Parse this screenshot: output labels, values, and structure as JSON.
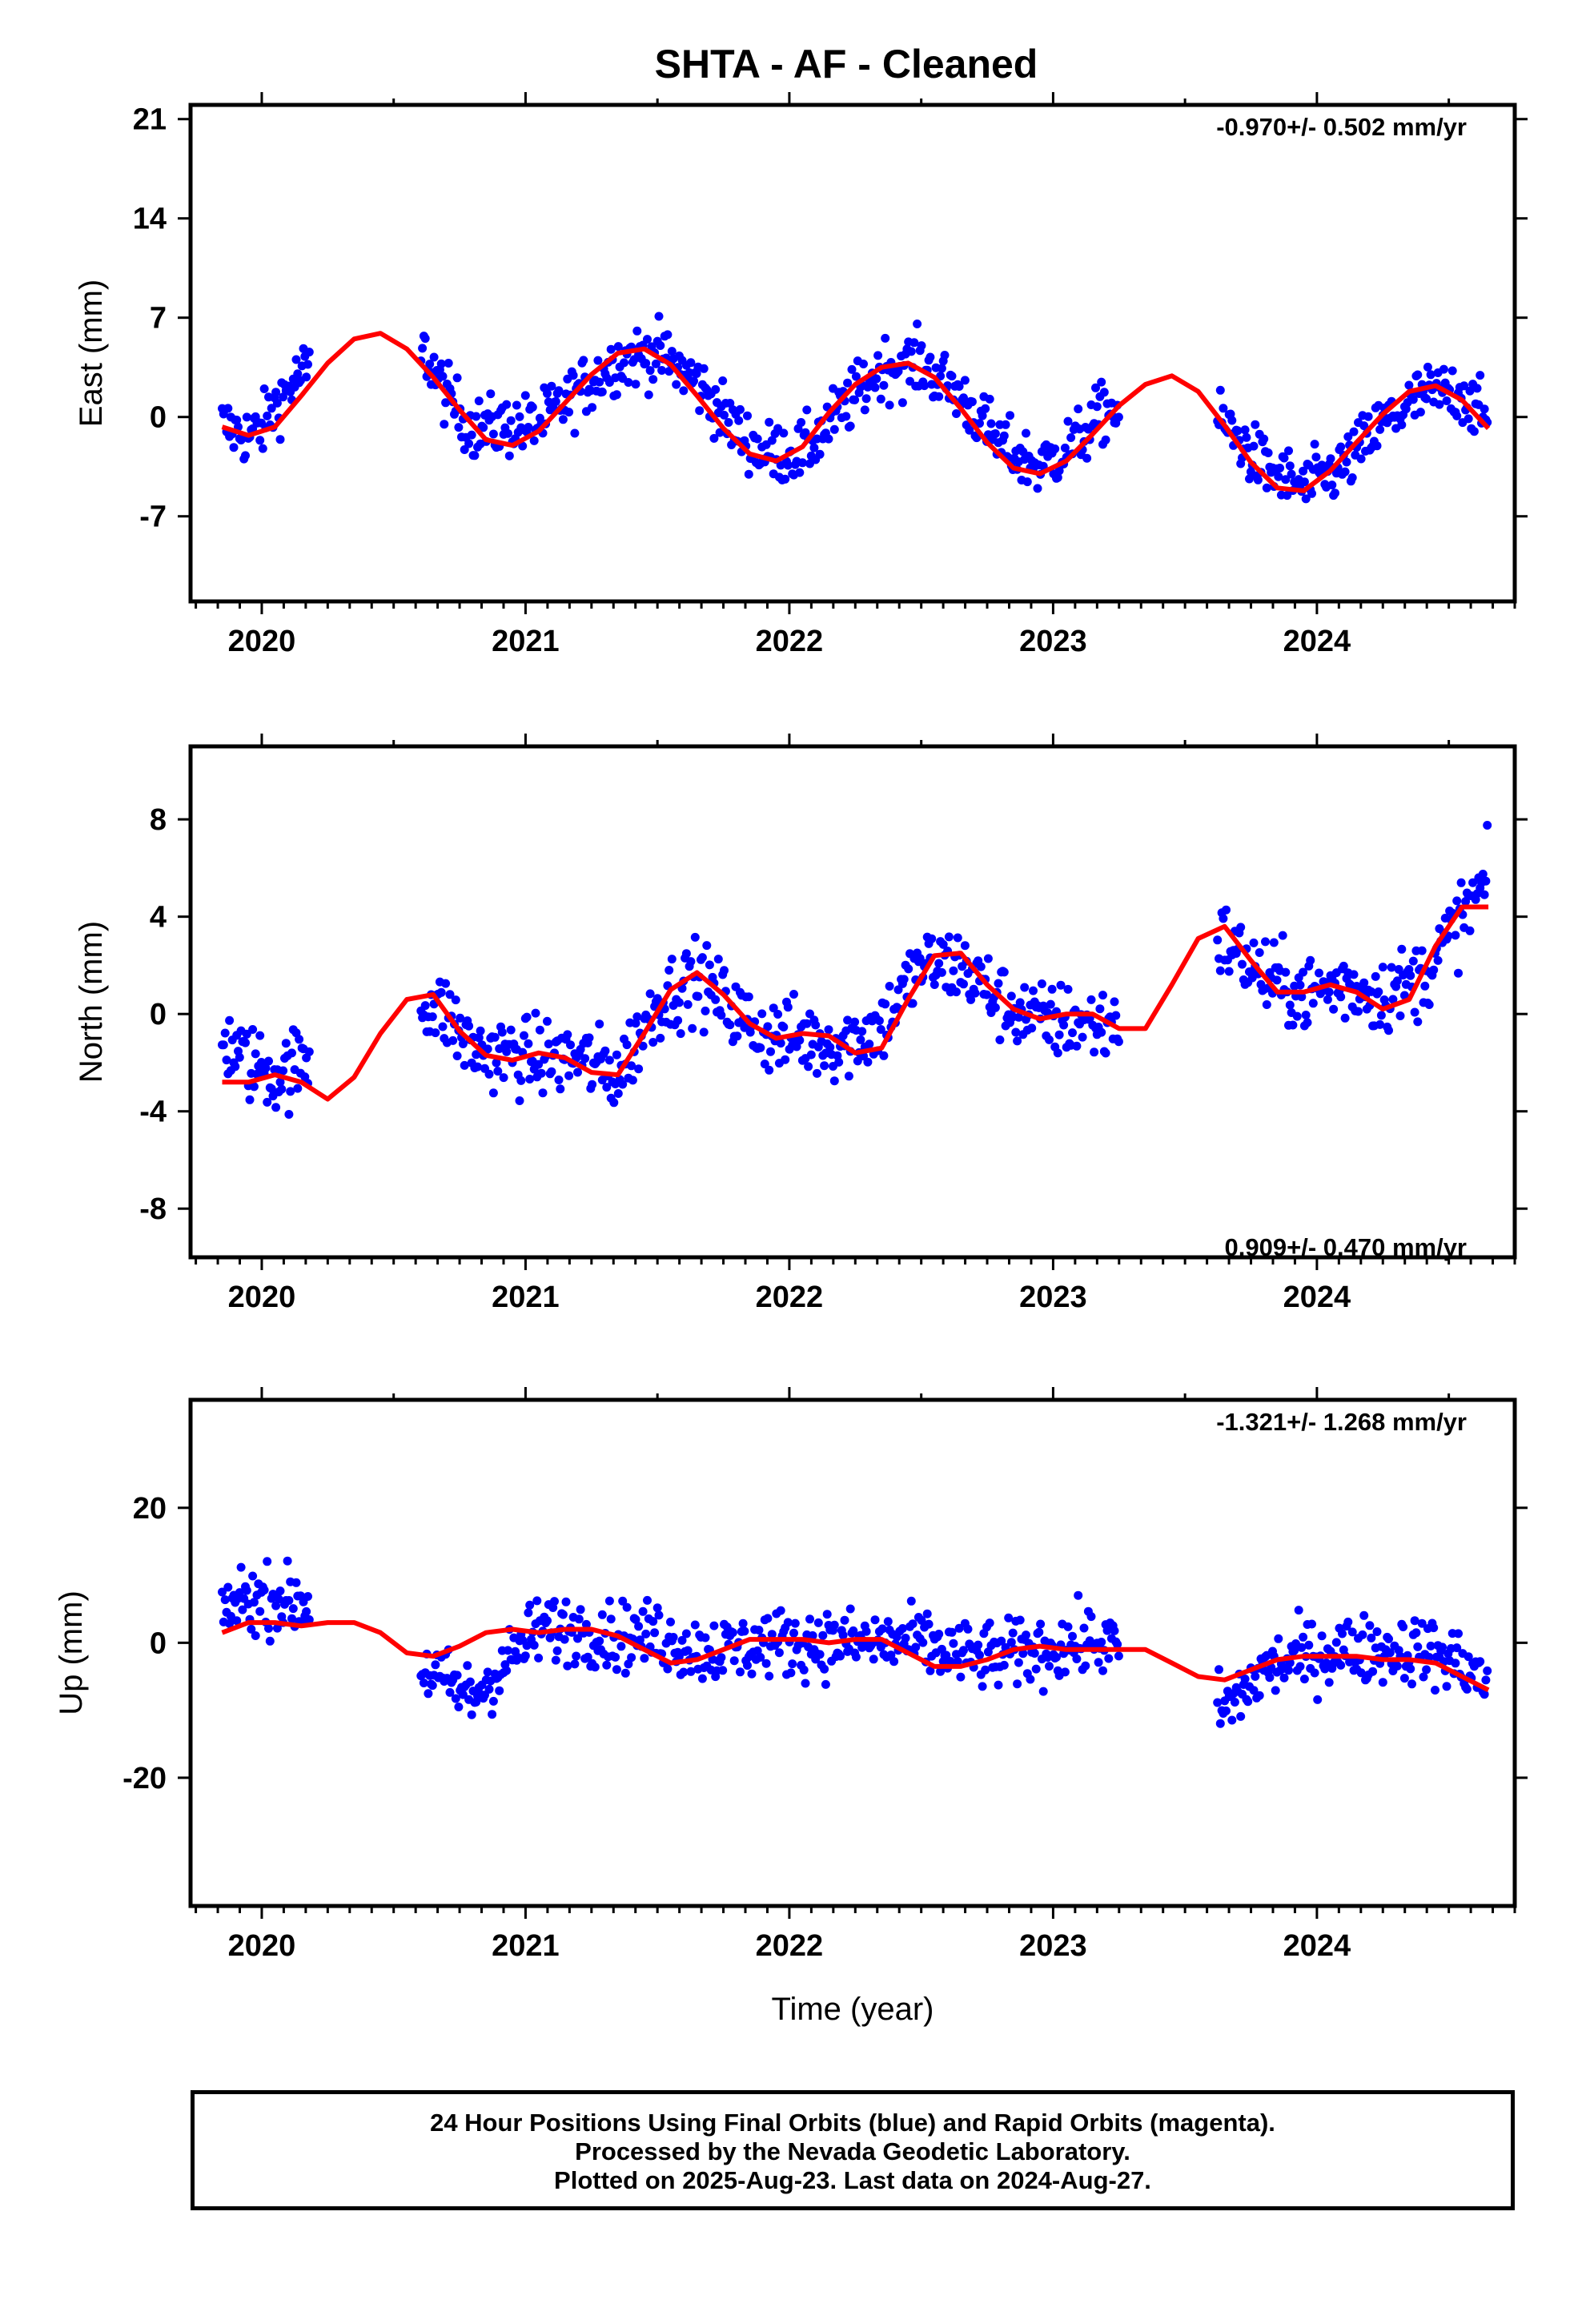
{
  "title": "SHTA  - AF - Cleaned",
  "footer": {
    "line1": "24 Hour Positions Using Final Orbits (blue) and Rapid Orbits (magenta).",
    "line2": "Processed by the Nevada Geodetic Laboratory.",
    "line3": "Plotted on 2025-Aug-23. Last data on 2024-Aug-27."
  },
  "chart_data": [
    {
      "type": "scatter",
      "ylabel": "East (mm)",
      "xlabel": "",
      "xlim": [
        2019.73,
        2024.75
      ],
      "ylim": [
        -13,
        22
      ],
      "xticks": [
        2020,
        2021,
        2022,
        2023,
        2024
      ],
      "yticks": [
        21,
        14,
        7,
        0,
        -7
      ],
      "rate_text": "-0.970+/- 0.502 mm/yr",
      "rate_position": "top-right",
      "gaps": [
        [
          2020.18,
          2020.6
        ],
        [
          2023.25,
          2023.62
        ]
      ],
      "series": [
        {
          "kind": "points",
          "color": "#0000ff",
          "x": [
            2019.85,
            2019.9,
            2019.95,
            2020.0,
            2020.05,
            2020.1,
            2020.15,
            2020.62,
            2020.7,
            2020.8,
            2021.05,
            2021.2,
            2021.35,
            2021.5,
            2021.65,
            2021.8,
            2021.9,
            2022.05,
            2022.2,
            2022.35,
            2022.5,
            2022.65,
            2022.8,
            2022.95,
            2023.1,
            2023.2,
            2023.65,
            2023.8,
            2023.95,
            2024.1,
            2024.25,
            2024.4,
            2024.55,
            2024.65
          ],
          "y": [
            -0.5,
            -1.0,
            -1.3,
            -0.8,
            0.8,
            2.0,
            3.0,
            4.5,
            1.5,
            -0.8,
            -0.5,
            1.8,
            4.0,
            4.5,
            2.5,
            -1.0,
            -2.5,
            -2.5,
            0.5,
            3.5,
            3.8,
            1.5,
            -2.0,
            -3.5,
            -1.5,
            0.5,
            -0.5,
            -3.5,
            -5.0,
            -3.5,
            -0.5,
            1.5,
            1.8,
            -0.5
          ],
          "spread": 2.6
        },
        {
          "kind": "fit",
          "color": "#ff0000",
          "x": [
            2019.85,
            2019.95,
            2020.05,
            2020.15,
            2020.25,
            2020.35,
            2020.45,
            2020.55,
            2020.65,
            2020.75,
            2020.85,
            2020.95,
            2021.05,
            2021.15,
            2021.25,
            2021.35,
            2021.45,
            2021.55,
            2021.65,
            2021.75,
            2021.85,
            2021.95,
            2022.05,
            2022.15,
            2022.25,
            2022.35,
            2022.45,
            2022.55,
            2022.65,
            2022.75,
            2022.85,
            2022.95,
            2023.05,
            2023.15,
            2023.25,
            2023.35,
            2023.45,
            2023.55,
            2023.65,
            2023.75,
            2023.85,
            2023.95,
            2024.05,
            2024.15,
            2024.25,
            2024.35,
            2024.45,
            2024.55,
            2024.65
          ],
          "y": [
            -0.7,
            -1.3,
            -0.7,
            1.5,
            3.8,
            5.5,
            5.9,
            4.8,
            2.8,
            0.5,
            -1.6,
            -2.0,
            -1.0,
            1.0,
            3.0,
            4.5,
            4.8,
            3.7,
            1.5,
            -0.8,
            -2.6,
            -3.1,
            -2.1,
            0.3,
            2.3,
            3.5,
            3.8,
            2.8,
            0.6,
            -1.8,
            -3.6,
            -4.0,
            -3.1,
            -1.2,
            0.8,
            2.3,
            2.9,
            1.8,
            -0.6,
            -3.2,
            -5.0,
            -5.2,
            -3.8,
            -1.8,
            0.2,
            1.8,
            2.2,
            1.2,
            -0.8
          ]
        }
      ]
    },
    {
      "type": "scatter",
      "ylabel": "North (mm)",
      "xlabel": "",
      "xlim": [
        2019.73,
        2024.75
      ],
      "ylim": [
        -10,
        11
      ],
      "xticks": [
        2020,
        2021,
        2022,
        2023,
        2024
      ],
      "yticks": [
        8,
        4,
        0,
        -4,
        -8
      ],
      "rate_text": "0.909+/- 0.470 mm/yr",
      "rate_position": "bottom-right",
      "gaps": [
        [
          2020.18,
          2020.6
        ],
        [
          2023.25,
          2023.62
        ]
      ],
      "series": [
        {
          "kind": "points",
          "color": "#0000ff",
          "x": [
            2019.85,
            2019.9,
            2019.95,
            2020.0,
            2020.05,
            2020.1,
            2020.15,
            2020.62,
            2020.7,
            2020.8,
            2021.05,
            2021.2,
            2021.35,
            2021.5,
            2021.65,
            2021.8,
            2021.9,
            2022.05,
            2022.2,
            2022.35,
            2022.5,
            2022.65,
            2022.8,
            2022.95,
            2023.1,
            2023.2,
            2023.65,
            2023.8,
            2023.95,
            2024.1,
            2024.25,
            2024.4,
            2024.55,
            2024.65
          ],
          "y": [
            -1.0,
            -1.5,
            -2.0,
            -2.2,
            -2.5,
            -2.3,
            -2.0,
            0.5,
            0.0,
            -1.5,
            -1.8,
            -1.8,
            -2.5,
            0.5,
            1.5,
            0.0,
            -0.8,
            -1.0,
            -1.2,
            -0.5,
            2.0,
            2.0,
            0.5,
            -0.3,
            -0.3,
            -0.5,
            3.0,
            1.5,
            0.8,
            1.2,
            0.8,
            1.5,
            4.0,
            5.5
          ],
          "spread": 1.9
        },
        {
          "kind": "fit",
          "color": "#ff0000",
          "x": [
            2019.85,
            2019.95,
            2020.05,
            2020.15,
            2020.25,
            2020.35,
            2020.45,
            2020.55,
            2020.65,
            2020.75,
            2020.85,
            2020.95,
            2021.05,
            2021.15,
            2021.25,
            2021.35,
            2021.45,
            2021.55,
            2021.65,
            2021.75,
            2021.85,
            2021.95,
            2022.05,
            2022.15,
            2022.25,
            2022.35,
            2022.45,
            2022.55,
            2022.65,
            2022.75,
            2022.85,
            2022.95,
            2023.05,
            2023.15,
            2023.25,
            2023.35,
            2023.45,
            2023.55,
            2023.65,
            2023.75,
            2023.85,
            2023.95,
            2024.05,
            2024.15,
            2024.25,
            2024.35,
            2024.45,
            2024.55,
            2024.65
          ],
          "y": [
            -2.8,
            -2.8,
            -2.5,
            -2.8,
            -3.5,
            -2.6,
            -0.8,
            0.6,
            0.8,
            -0.7,
            -1.7,
            -1.9,
            -1.6,
            -1.8,
            -2.4,
            -2.5,
            -0.8,
            1.0,
            1.7,
            0.8,
            -0.4,
            -1.0,
            -0.8,
            -0.9,
            -1.6,
            -1.4,
            0.6,
            2.4,
            2.5,
            1.2,
            0.2,
            -0.2,
            0.0,
            0.0,
            -0.6,
            -0.6,
            1.2,
            3.1,
            3.6,
            2.2,
            0.9,
            0.9,
            1.2,
            0.9,
            0.2,
            0.6,
            2.8,
            4.4,
            4.4
          ]
        }
      ]
    },
    {
      "type": "scatter",
      "ylabel": "Up (mm)",
      "xlabel": "Time (year)",
      "xlim": [
        2019.73,
        2024.75
      ],
      "ylim": [
        -39,
        36
      ],
      "xticks": [
        2020,
        2021,
        2022,
        2023,
        2024
      ],
      "yticks": [
        20,
        0,
        -20
      ],
      "rate_text": "-1.321+/- 1.268 mm/yr",
      "rate_position": "top-right",
      "gaps": [
        [
          2020.18,
          2020.6
        ],
        [
          2023.25,
          2023.62
        ]
      ],
      "series": [
        {
          "kind": "points",
          "color": "#0000ff",
          "x": [
            2019.85,
            2019.9,
            2019.95,
            2020.0,
            2020.05,
            2020.1,
            2020.15,
            2020.62,
            2020.7,
            2020.8,
            2021.05,
            2021.2,
            2021.35,
            2021.5,
            2021.65,
            2021.8,
            2021.9,
            2022.05,
            2022.2,
            2022.35,
            2022.5,
            2022.65,
            2022.8,
            2022.95,
            2023.1,
            2023.2,
            2023.65,
            2023.8,
            2023.95,
            2024.1,
            2024.25,
            2024.4,
            2024.55,
            2024.65
          ],
          "y": [
            5,
            6,
            7,
            6,
            7,
            6,
            6,
            -4,
            -6,
            -8,
            2,
            2,
            1,
            1,
            -1,
            -1,
            0,
            0,
            0,
            0,
            0,
            -2,
            -2,
            -1,
            0,
            0,
            -10,
            -4,
            -2,
            -1,
            -1,
            -1,
            -3,
            -6
          ],
          "spread": 6.0
        },
        {
          "kind": "fit",
          "color": "#ff0000",
          "x": [
            2019.85,
            2019.95,
            2020.05,
            2020.15,
            2020.25,
            2020.35,
            2020.45,
            2020.55,
            2020.65,
            2020.75,
            2020.85,
            2020.95,
            2021.05,
            2021.15,
            2021.25,
            2021.35,
            2021.45,
            2021.55,
            2021.65,
            2021.75,
            2021.85,
            2021.95,
            2022.05,
            2022.15,
            2022.25,
            2022.35,
            2022.45,
            2022.55,
            2022.65,
            2022.75,
            2022.85,
            2022.95,
            2023.05,
            2023.15,
            2023.25,
            2023.35,
            2023.45,
            2023.55,
            2023.65,
            2023.75,
            2023.85,
            2023.95,
            2024.05,
            2024.15,
            2024.25,
            2024.35,
            2024.45,
            2024.55,
            2024.65
          ],
          "y": [
            1.5,
            3,
            3,
            2.5,
            3,
            3,
            1.5,
            -1.5,
            -2,
            -0.5,
            1.5,
            2,
            1.5,
            2,
            2,
            1,
            -1,
            -3,
            -2.5,
            -1,
            0.5,
            0.5,
            0.5,
            0,
            0.5,
            0.5,
            -1.5,
            -3.5,
            -3.5,
            -2.5,
            -1,
            -0.5,
            -1,
            -1,
            -1,
            -1,
            -3,
            -5,
            -5.5,
            -4,
            -2.5,
            -2,
            -2,
            -2,
            -2.5,
            -2.5,
            -3,
            -5,
            -7
          ]
        }
      ]
    }
  ]
}
